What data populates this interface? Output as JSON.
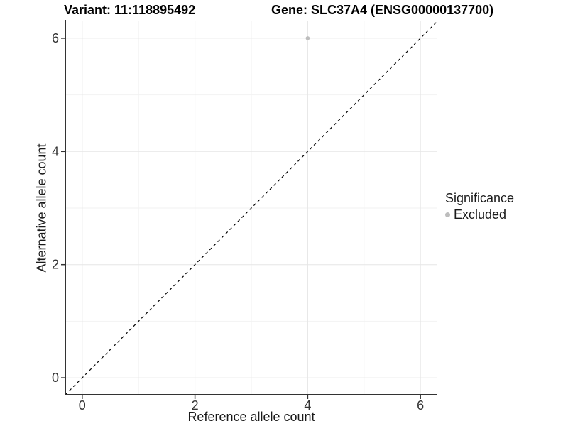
{
  "chart_data": {
    "type": "scatter",
    "title_left": "Variant: 11:118895492",
    "title_right": "Gene: SLC37A4 (ENSG00000137700)",
    "xlabel": "Reference allele count",
    "ylabel": "Alternative allele count",
    "xlim": [
      -0.3,
      6.3
    ],
    "ylim": [
      -0.3,
      6.3
    ],
    "x_ticks": [
      0,
      2,
      4,
      6
    ],
    "y_ticks": [
      0,
      2,
      4,
      6
    ],
    "x_minor_ticks": [
      1,
      3,
      5
    ],
    "y_minor_ticks": [
      1,
      3,
      5
    ],
    "grid": true,
    "identity_line": {
      "type": "dashed",
      "color": "#000000",
      "from": -0.3,
      "to": 6.3
    },
    "series": [
      {
        "name": "Excluded",
        "color": "#bdbdbd",
        "points": [
          {
            "x": 4,
            "y": 6
          }
        ]
      }
    ],
    "legend": {
      "position": "right",
      "title": "Significance",
      "entries": [
        {
          "label": "Excluded",
          "color": "#bdbdbd"
        }
      ]
    },
    "colors": {
      "major_grid": "#e6e6e6",
      "minor_grid": "#f2f2f2",
      "axis_line": "#333333",
      "tick_mark": "#333333",
      "tick_label": "#333333"
    }
  }
}
